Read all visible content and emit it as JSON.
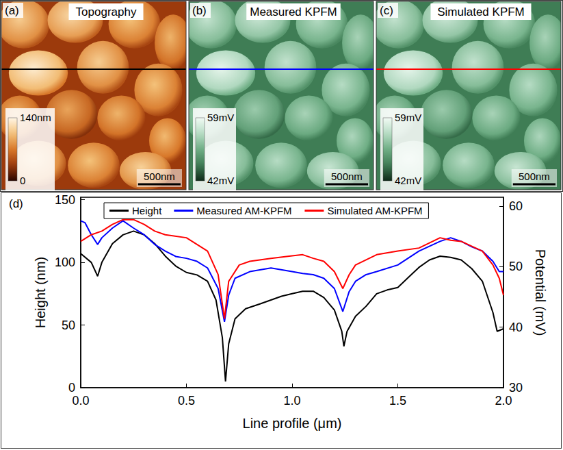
{
  "images": [
    {
      "label": "(a)",
      "title": "Topography",
      "colormap": [
        "#2a0600",
        "#9c3a0c",
        "#d8782a",
        "#f4c27a",
        "#fff6e6"
      ],
      "colorbar": {
        "max": {
          "value": 140,
          "label": "140nm"
        },
        "min": {
          "value": 0,
          "label": "0"
        }
      },
      "scale_bar": {
        "value": 500,
        "label": "500nm"
      },
      "profile_color": "#000000"
    },
    {
      "label": "(b)",
      "title": "Measured KPFM",
      "colormap": [
        "#0e2a18",
        "#3f7d55",
        "#6fae85",
        "#b6dcc4",
        "#f2fbf5"
      ],
      "colorbar": {
        "max": {
          "value": 59,
          "label": "59mV"
        },
        "min": {
          "value": 42,
          "label": "42mV"
        }
      },
      "scale_bar": {
        "value": 500,
        "label": "500nm"
      },
      "profile_color": "#0000ff"
    },
    {
      "label": "(c)",
      "title": "Simulated KPFM",
      "colormap": [
        "#0e2a18",
        "#3f7d55",
        "#6fae85",
        "#b6dcc4",
        "#f2fbf5"
      ],
      "colorbar": {
        "max": {
          "value": 59,
          "label": "59mV"
        },
        "min": {
          "value": 42,
          "label": "42mV"
        }
      },
      "scale_bar": {
        "value": 500,
        "label": "500nm"
      },
      "profile_color": "#ff0000"
    }
  ],
  "chart_data": {
    "type": "line",
    "label": "(d)",
    "x_label": "Line profile (μm)",
    "y_label": "Height (nm)",
    "y2_label": "Potential (mV)",
    "xlim": [
      0,
      2
    ],
    "xticks": [
      {
        "value": 0,
        "label": "0.0"
      },
      0.5,
      {
        "value": 1,
        "label": "1.0"
      },
      1.5,
      {
        "value": 2,
        "label": "2.0"
      }
    ],
    "ylim": [
      0,
      152
    ],
    "yticks": [
      0,
      50,
      100,
      150
    ],
    "y2lim": [
      30,
      61.5
    ],
    "y2ticks": [
      30,
      40,
      50,
      60
    ],
    "grid": false,
    "legend": "top",
    "series": [
      {
        "name": "Height",
        "color": "#000000",
        "axis": "y",
        "x": [
          0,
          0.05,
          0.08,
          0.1,
          0.15,
          0.2,
          0.25,
          0.3,
          0.35,
          0.4,
          0.45,
          0.5,
          0.55,
          0.6,
          0.64,
          0.67,
          0.685,
          0.7,
          0.73,
          0.78,
          0.85,
          0.9,
          0.95,
          1.0,
          1.05,
          1.1,
          1.15,
          1.2,
          1.235,
          1.245,
          1.26,
          1.3,
          1.35,
          1.4,
          1.45,
          1.5,
          1.55,
          1.6,
          1.65,
          1.7,
          1.75,
          1.8,
          1.85,
          1.9,
          1.95,
          1.97,
          2.0
        ],
        "values": [
          107,
          100,
          89,
          100,
          115,
          122,
          125,
          122,
          115,
          105,
          97,
          92,
          90,
          85,
          70,
          40,
          5,
          35,
          55,
          63,
          67,
          70,
          73,
          75,
          77,
          77,
          72,
          62,
          45,
          33,
          45,
          57,
          65,
          75,
          78,
          80,
          88,
          96,
          102,
          105,
          104,
          102,
          95,
          85,
          60,
          45,
          47
        ]
      },
      {
        "name": "Measured AM-KPFM",
        "color": "#0000ff",
        "axis": "y2",
        "x": [
          0,
          0.02,
          0.05,
          0.08,
          0.1,
          0.15,
          0.2,
          0.25,
          0.3,
          0.35,
          0.4,
          0.45,
          0.5,
          0.55,
          0.6,
          0.65,
          0.68,
          0.7,
          0.73,
          0.8,
          0.9,
          1.0,
          1.05,
          1.1,
          1.15,
          1.2,
          1.24,
          1.27,
          1.3,
          1.35,
          1.4,
          1.5,
          1.6,
          1.7,
          1.75,
          1.8,
          1.85,
          1.9,
          1.95,
          1.98,
          2.0
        ],
        "values": [
          57.6,
          57.3,
          55.3,
          53.7,
          54.8,
          56.4,
          57.6,
          56.4,
          55.3,
          53.7,
          52.6,
          51.7,
          51.4,
          50.9,
          49.8,
          46.4,
          40.9,
          45.3,
          48.1,
          49.2,
          49.8,
          49.2,
          48.9,
          48.7,
          48.1,
          46.4,
          42.6,
          45.9,
          47.6,
          48.7,
          49.2,
          50.3,
          52.6,
          54.2,
          54.8,
          54.2,
          53.3,
          52.6,
          50.9,
          49.2,
          49.2
        ]
      },
      {
        "name": "Simulated AM-KPFM",
        "color": "#ff0000",
        "axis": "y2",
        "x": [
          0,
          0.05,
          0.1,
          0.15,
          0.2,
          0.25,
          0.3,
          0.35,
          0.4,
          0.5,
          0.55,
          0.6,
          0.65,
          0.68,
          0.7,
          0.75,
          0.8,
          0.9,
          1.0,
          1.05,
          1.1,
          1.15,
          1.2,
          1.24,
          1.27,
          1.3,
          1.4,
          1.5,
          1.6,
          1.7,
          1.75,
          1.8,
          1.9,
          1.95,
          1.98,
          2.0
        ],
        "values": [
          54.2,
          55.3,
          55.9,
          57.0,
          57.8,
          57.8,
          57.0,
          55.9,
          55.3,
          54.8,
          53.7,
          52.6,
          48.7,
          41.4,
          47.6,
          50.3,
          50.9,
          51.4,
          51.8,
          52.0,
          51.4,
          50.9,
          49.2,
          46.4,
          48.7,
          50.3,
          52.0,
          52.6,
          53.1,
          54.8,
          54.4,
          54.2,
          52.6,
          50.3,
          48.1,
          45.3
        ]
      }
    ]
  }
}
